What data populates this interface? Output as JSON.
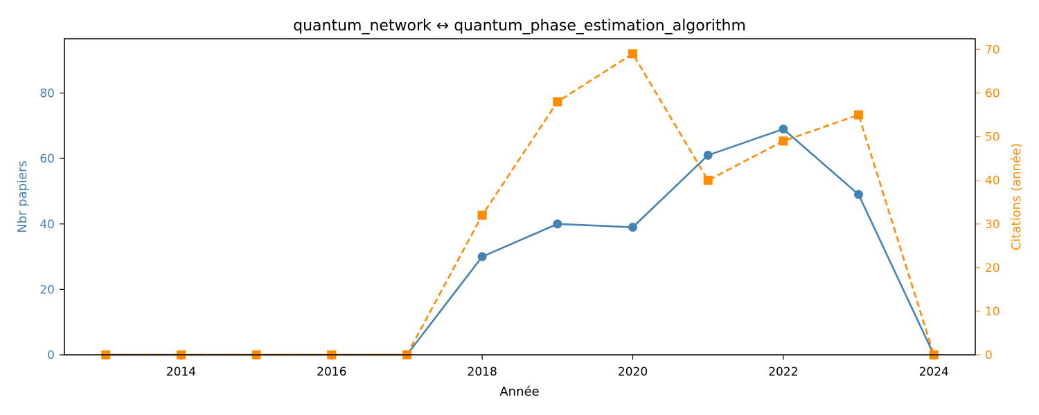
{
  "chart_data": {
    "type": "line",
    "title": "quantum_network  ↔  quantum_phase_estimation_algorithm",
    "xlabel": "Année",
    "ylabel_left": "Nbr papiers",
    "ylabel_right": "Citations (année)",
    "x": [
      2013,
      2014,
      2015,
      2016,
      2017,
      2018,
      2019,
      2020,
      2021,
      2022,
      2023,
      2024
    ],
    "xlim": [
      2012.45,
      2024.55
    ],
    "ylim_left": [
      0,
      96.6
    ],
    "ylim_right": [
      0,
      72.45
    ],
    "x_ticks": [
      2014,
      2016,
      2018,
      2020,
      2022,
      2024
    ],
    "y_ticks_left": [
      0,
      20,
      40,
      60,
      80
    ],
    "y_ticks_right": [
      0,
      10,
      20,
      30,
      40,
      50,
      60,
      70
    ],
    "grid": false,
    "series": [
      {
        "axis": "left",
        "style": "solid",
        "marker": "circle",
        "color": "#4682b4",
        "values": [
          0,
          0,
          0,
          0,
          0,
          30,
          40,
          39,
          61,
          69,
          49,
          0
        ]
      },
      {
        "axis": "right",
        "style": "dashed",
        "marker": "square",
        "color": "#ff8c00",
        "values": [
          0,
          0,
          0,
          0,
          0,
          32,
          58,
          69,
          40,
          49,
          55,
          0
        ]
      }
    ]
  }
}
